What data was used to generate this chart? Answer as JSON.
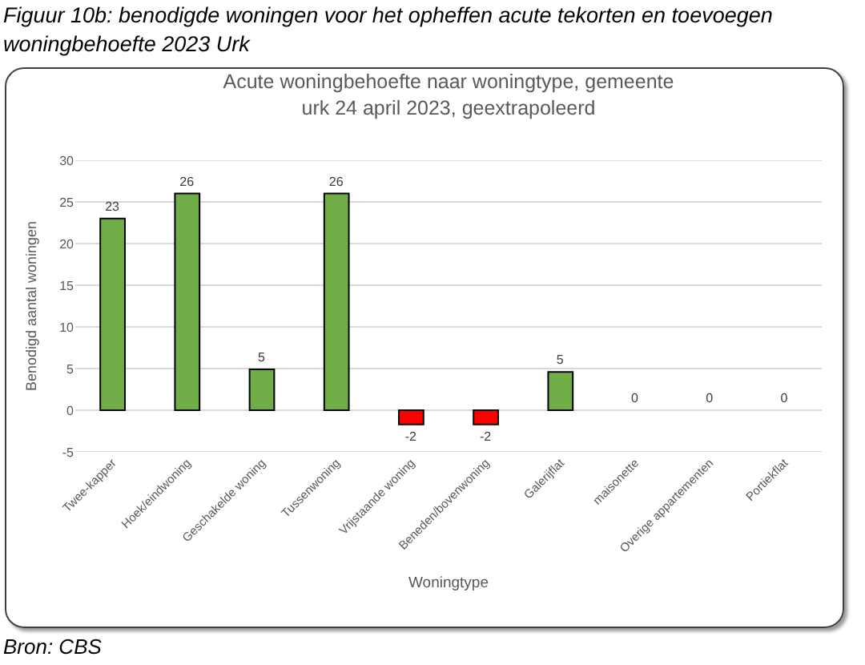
{
  "chart_data": {
    "type": "bar",
    "title": "Figuur 10b: benodigde woningen voor het opheffen acute tekorten en toevoegen woningbehoefte 2023 Urk",
    "subtitle": "Acute woningbehoefte naar woningtype, gemeente urk 24 april 2023, geextrapoleerd",
    "xlabel": "Woningtype",
    "ylabel": "Benodigd aantal woningen",
    "categories": [
      "Twee-kapper",
      "Hoek/eindwoning",
      "Geschakelde woning",
      "Tussenwoning",
      "Vrijstaande woning",
      "Beneden/bovenwoning",
      "Galerijflat",
      "maisonette",
      "Overige appartementen",
      "Portiekflat"
    ],
    "values": [
      23,
      26,
      4.9,
      26,
      -1.7,
      -1.7,
      4.6,
      0,
      0,
      0
    ],
    "colors": [
      "#70ad47",
      "#70ad47",
      "#70ad47",
      "#70ad47",
      "#ff0000",
      "#ff0000",
      "#70ad47",
      "#70ad47",
      "#70ad47",
      "#70ad47"
    ],
    "value_labels": [
      "23",
      "26",
      "5",
      "26",
      "-2",
      "-2",
      "5",
      "0",
      "0",
      "0"
    ],
    "ylim": [
      -5,
      30
    ],
    "yticks": [
      -5,
      0,
      5,
      10,
      15,
      20,
      25,
      30
    ],
    "grid": "y",
    "annotations": [
      "Bron: CBS"
    ]
  }
}
